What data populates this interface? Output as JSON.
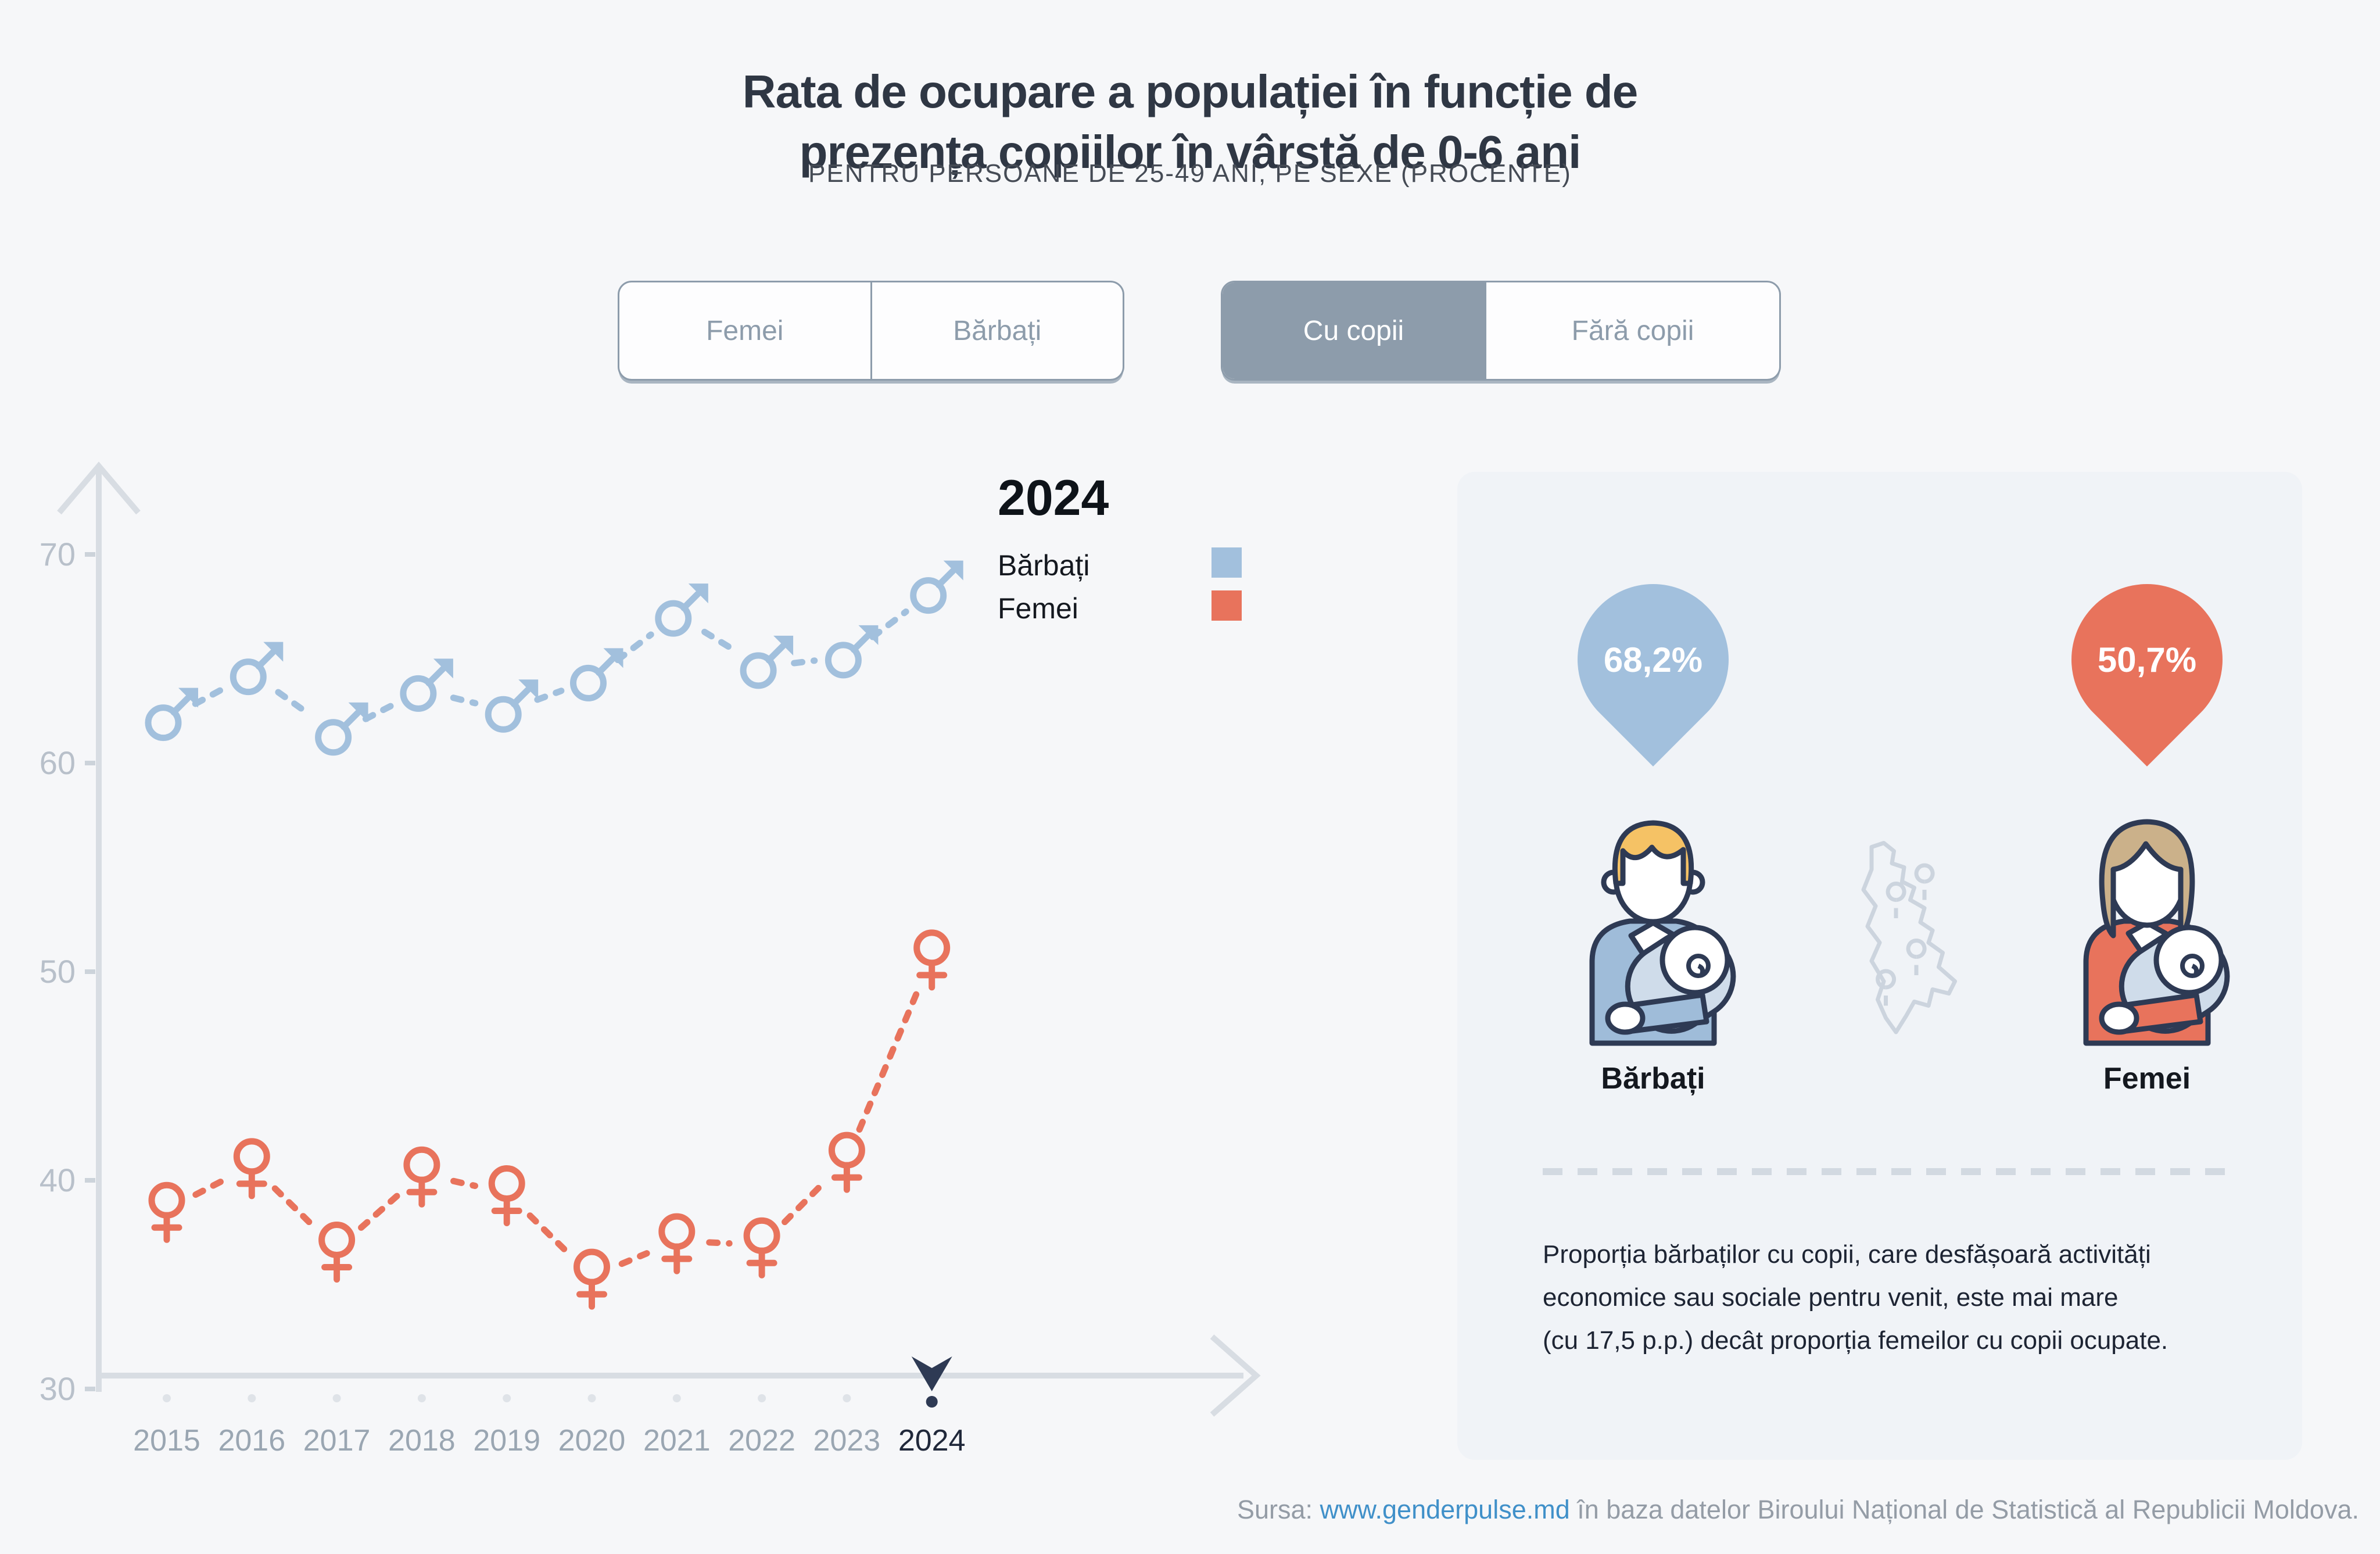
{
  "title": {
    "line1": "Rata de ocupare a populației în funcție de",
    "line2": "prezența copiilor în vârstă de 0-6 ani",
    "subtitle": "PENTRU PERSOANE DE 25-49 ANI, PE SEXE (PROCENTE)"
  },
  "filters": {
    "sex": {
      "options": [
        {
          "label": "Femei",
          "active": false
        },
        {
          "label": "Bărbați",
          "active": false
        }
      ]
    },
    "children": {
      "options": [
        {
          "label": "Cu copii",
          "active": true
        },
        {
          "label": "Fără copii",
          "active": false
        }
      ]
    }
  },
  "legend": {
    "year": "2024",
    "items": [
      {
        "label": "Bărbați",
        "color": "#a2c0dd"
      },
      {
        "label": "Femei",
        "color": "#e8735c"
      }
    ]
  },
  "chart_data": {
    "type": "line",
    "line_style": "dashed",
    "x": [
      2015,
      2016,
      2017,
      2018,
      2019,
      2020,
      2021,
      2022,
      2023,
      2024
    ],
    "series": [
      {
        "name": "Bărbați",
        "marker": "mars",
        "color": "#a2c0dd",
        "values": [
          62.1,
          64.3,
          61.4,
          63.5,
          62.5,
          64.0,
          67.1,
          64.6,
          65.1,
          68.2
        ]
      },
      {
        "name": "Femei",
        "marker": "venus",
        "color": "#e8735c",
        "values": [
          38.6,
          40.7,
          36.7,
          40.3,
          39.4,
          35.4,
          37.1,
          36.9,
          41.0,
          50.7
        ]
      }
    ],
    "ylim": [
      30,
      70
    ],
    "yticks": [
      70,
      60,
      50,
      40,
      30
    ],
    "highlight_year": 2024,
    "xlabel": "",
    "ylabel": ""
  },
  "panel": {
    "pins": [
      {
        "value": "68,2%",
        "color": "#a2c0dd"
      },
      {
        "value": "50,7%",
        "color": "#e8735c"
      }
    ],
    "figures": [
      {
        "label": "Bărbați"
      },
      {
        "label": "Femei"
      }
    ],
    "note": {
      "line1": "Proporția bărbaților cu copii, care desfășoară activități",
      "line2": "economice sau sociale pentru venit, este mai mare",
      "line3": "(cu 17,5 p.p.) decât proporția femeilor cu copii ocupate."
    }
  },
  "source": {
    "prefix": "Sursa: ",
    "link": "www.genderpulse.md",
    "suffix": " în baza datelor Biroului Național de Statistică al Republicii Moldova."
  },
  "colors": {
    "men": "#a2c0dd",
    "women": "#e8735c",
    "accent_dark": "#2e3a54",
    "axis": "#d8dde3",
    "tick_label": "#b8c0ca",
    "year_label": "#9aa6b2",
    "year_active": "#20283a",
    "toggle": "#8d9cab",
    "panel_bg": "#f0f3f7",
    "page_bg": "#f6f7f9",
    "link": "#4090c9"
  }
}
